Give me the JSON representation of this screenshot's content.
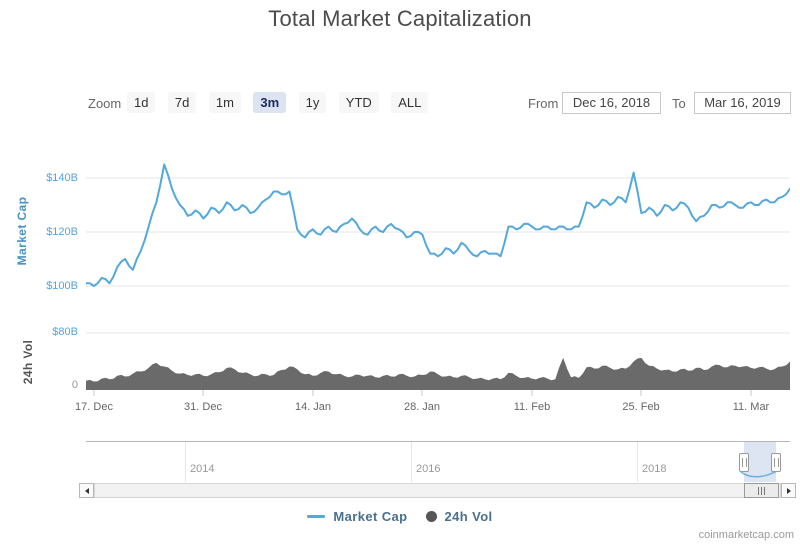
{
  "title": "Total Market Capitalization",
  "toolbar": {
    "zoom_label": "Zoom",
    "zoom_buttons": [
      {
        "label": "1d",
        "selected": false
      },
      {
        "label": "7d",
        "selected": false
      },
      {
        "label": "1m",
        "selected": false
      },
      {
        "label": "3m",
        "selected": true
      },
      {
        "label": "1y",
        "selected": false
      },
      {
        "label": "YTD",
        "selected": false
      },
      {
        "label": "ALL",
        "selected": false
      }
    ],
    "from_label": "From",
    "from_value": "Dec 16, 2018",
    "to_label": "To",
    "to_value": "Mar 16, 2019"
  },
  "legend": {
    "items": [
      {
        "label": "Market Cap",
        "marker": "line"
      },
      {
        "label": "24h Vol",
        "marker": "dot"
      }
    ],
    "position": "bottom-center"
  },
  "credit": "coinmarketcap.com",
  "colors": {
    "market_cap_line": "#54a8dc",
    "volume_fill": "#6a6a6a",
    "axis_label_blue": "#55a5d9",
    "gridline": "#e7e7e7",
    "tick": "#c9c9c9",
    "selected_button_bg": "#dce4f2",
    "navigator_mask": "rgba(102,133,194,0.22)"
  },
  "chart_data": [
    {
      "type": "line",
      "title": "Total Market Capitalization",
      "name": "Market Cap",
      "units": "USD billions",
      "x_start": "Dec 16, 2018",
      "x_end": "Mar 16, 2019",
      "x_step": "1 day",
      "xticklabels": [
        "17. Dec",
        "31. Dec",
        "14. Jan",
        "28. Jan",
        "11. Feb",
        "25. Feb",
        "11. Mar"
      ],
      "ylabel": "Market Cap",
      "yticks": [
        "$100B",
        "$120B",
        "$140B"
      ],
      "ylim": [
        97,
        148
      ],
      "grid": "horizontal",
      "values": [
        101,
        100,
        103,
        101,
        107,
        110,
        106,
        113,
        122,
        131,
        145,
        136,
        130,
        126,
        128,
        125,
        129,
        127,
        131,
        128,
        130,
        127,
        129,
        132,
        135,
        134,
        135,
        121,
        118,
        121,
        119,
        122,
        120,
        123,
        125,
        121,
        119,
        122,
        120,
        123,
        121,
        118,
        120,
        119,
        112,
        111,
        114,
        112,
        116,
        113,
        111,
        113,
        112,
        111,
        122,
        121,
        123,
        122,
        121,
        122,
        121,
        122,
        121,
        122,
        131,
        129,
        132,
        130,
        133,
        131,
        142,
        127,
        129,
        126,
        130,
        128,
        131,
        129,
        124,
        126,
        130,
        129,
        131,
        130,
        129,
        131,
        130,
        132,
        131,
        133,
        136
      ]
    },
    {
      "type": "area",
      "name": "24h Vol",
      "units": "USD billions",
      "ylabel": "24h Vol",
      "yticks": [
        "0",
        "$80B"
      ],
      "ylim": [
        0,
        80
      ],
      "values": [
        13,
        12,
        16,
        15,
        20,
        19,
        23,
        26,
        31,
        38,
        33,
        27,
        23,
        21,
        22,
        20,
        22,
        25,
        31,
        29,
        24,
        22,
        20,
        22,
        21,
        28,
        33,
        29,
        22,
        20,
        24,
        26,
        22,
        20,
        19,
        21,
        20,
        18,
        20,
        19,
        22,
        20,
        19,
        21,
        26,
        22,
        19,
        18,
        20,
        18,
        16,
        15,
        16,
        15,
        24,
        20,
        17,
        16,
        17,
        16,
        15,
        45,
        18,
        17,
        32,
        30,
        34,
        31,
        29,
        30,
        40,
        45,
        34,
        30,
        28,
        26,
        29,
        27,
        31,
        28,
        33,
        35,
        32,
        34,
        33,
        31,
        32,
        30,
        29,
        33,
        40
      ]
    },
    {
      "type": "navigator",
      "years": [
        "2014",
        "2016",
        "2018"
      ],
      "selected_range": "3m"
    }
  ]
}
